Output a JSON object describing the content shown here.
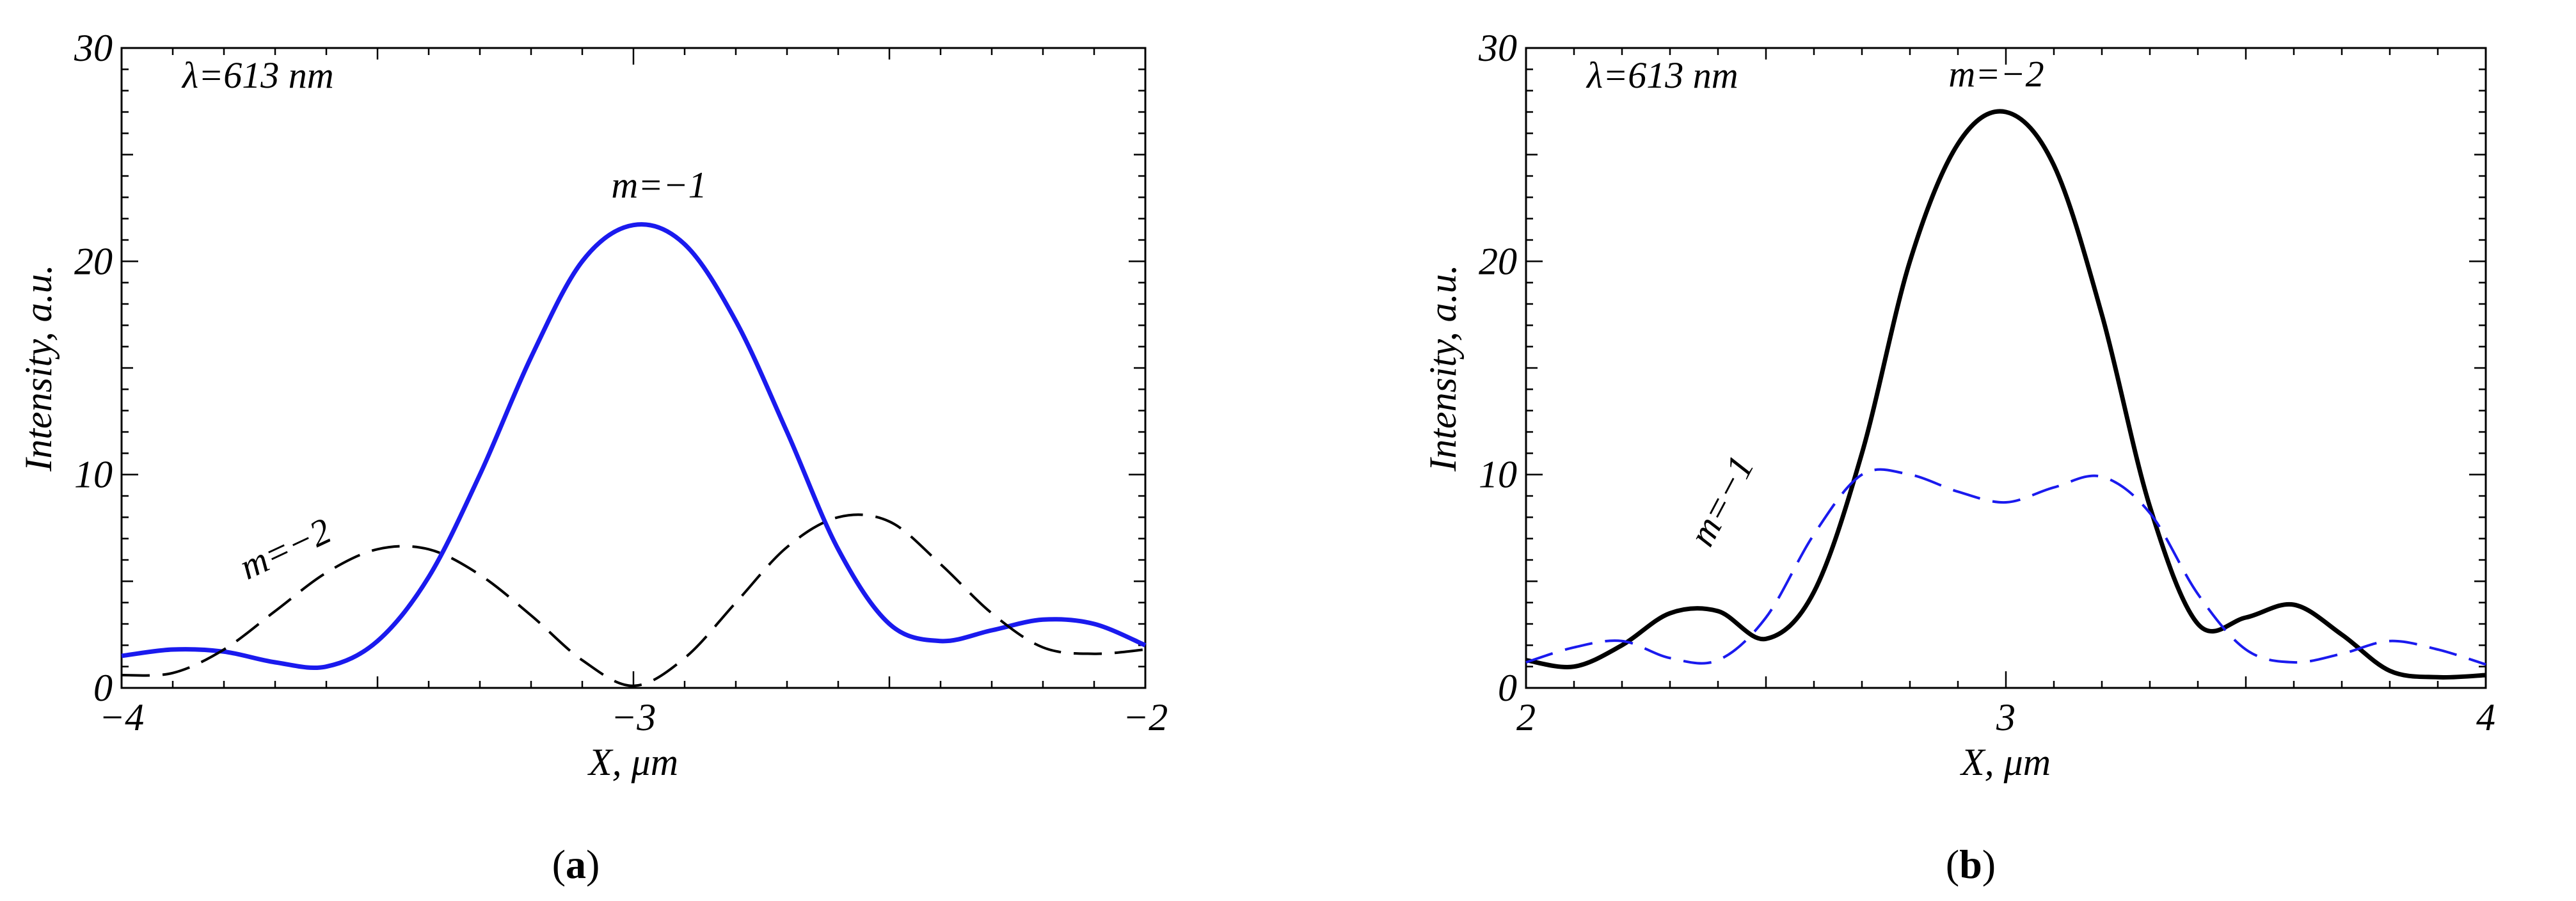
{
  "chart_data": [
    {
      "type": "line",
      "panel_label": "a",
      "annotation_text": "λ=613 nm",
      "xlabel": "X, μm",
      "ylabel": "Intensity, a.u.",
      "xlim": [
        -4,
        -2
      ],
      "ylim": [
        0,
        30
      ],
      "xticks": [
        -4,
        -3,
        -2
      ],
      "xtick_labels": [
        "−4",
        "−3",
        "−2"
      ],
      "yticks": [
        0,
        10,
        20,
        30
      ],
      "ytick_labels": [
        "0",
        "10",
        "20",
        "30"
      ],
      "series": [
        {
          "name": "m=−1",
          "label_text": "m=−1",
          "label_at": [
            -2.95,
            23.0
          ],
          "label_rotation": 0,
          "color": "#1a1aee",
          "dash": "solid",
          "x": [
            -4.0,
            -3.9,
            -3.8,
            -3.7,
            -3.6,
            -3.5,
            -3.4,
            -3.3,
            -3.2,
            -3.1,
            -3.0,
            -2.9,
            -2.8,
            -2.7,
            -2.6,
            -2.5,
            -2.4,
            -2.3,
            -2.2,
            -2.1,
            -2.0
          ],
          "y": [
            1.5,
            1.8,
            1.7,
            1.2,
            1.0,
            2.2,
            5.2,
            10.0,
            15.5,
            20.0,
            21.7,
            20.8,
            17.2,
            12.0,
            6.5,
            3.0,
            2.2,
            2.7,
            3.2,
            3.0,
            2.0
          ]
        },
        {
          "name": "m=−2",
          "label_text": "m=−2",
          "label_at": [
            -3.67,
            6.0
          ],
          "label_rotation": -25,
          "color": "#000000",
          "dash": "dashed",
          "x": [
            -4.0,
            -3.9,
            -3.8,
            -3.7,
            -3.6,
            -3.5,
            -3.4,
            -3.3,
            -3.2,
            -3.1,
            -3.0,
            -2.9,
            -2.8,
            -2.7,
            -2.6,
            -2.5,
            -2.4,
            -2.3,
            -2.2,
            -2.1,
            -2.0
          ],
          "y": [
            0.6,
            0.7,
            1.8,
            3.6,
            5.4,
            6.5,
            6.5,
            5.3,
            3.4,
            1.3,
            0.1,
            1.4,
            4.0,
            6.6,
            8.0,
            7.8,
            5.8,
            3.5,
            1.9,
            1.6,
            1.8
          ]
        }
      ]
    },
    {
      "type": "line",
      "panel_label": "b",
      "annotation_text": "λ=613 nm",
      "xlabel": "X, μm",
      "ylabel": "Intensity, a.u.",
      "xlim": [
        2,
        4
      ],
      "ylim": [
        0,
        30
      ],
      "xticks": [
        2,
        3,
        4
      ],
      "xtick_labels": [
        "2",
        "3",
        "4"
      ],
      "yticks": [
        0,
        10,
        20,
        30
      ],
      "ytick_labels": [
        "0",
        "10",
        "20",
        "30"
      ],
      "series": [
        {
          "name": "m=−2",
          "label_text": "m=−2",
          "label_at": [
            2.98,
            28.2
          ],
          "label_rotation": 0,
          "color": "#000000",
          "dash": "solid",
          "x": [
            2.0,
            2.1,
            2.2,
            2.3,
            2.4,
            2.5,
            2.6,
            2.7,
            2.8,
            2.9,
            3.0,
            3.1,
            3.2,
            3.3,
            3.4,
            3.5,
            3.6,
            3.7,
            3.8,
            3.9,
            4.0
          ],
          "y": [
            1.3,
            1.0,
            2.0,
            3.5,
            3.6,
            2.3,
            4.5,
            11.0,
            20.0,
            25.5,
            27.0,
            24.5,
            17.5,
            8.5,
            3.0,
            3.3,
            3.9,
            2.5,
            0.8,
            0.5,
            0.6
          ]
        },
        {
          "name": "m=−1",
          "label_text": "m=−1",
          "label_at": [
            2.43,
            8.5
          ],
          "label_rotation": -62,
          "color": "#1a1aee",
          "dash": "dashed",
          "x": [
            2.0,
            2.1,
            2.2,
            2.3,
            2.4,
            2.5,
            2.6,
            2.7,
            2.8,
            2.9,
            3.0,
            3.1,
            3.2,
            3.3,
            3.4,
            3.5,
            3.6,
            3.7,
            3.8,
            3.9,
            4.0
          ],
          "y": [
            1.2,
            1.9,
            2.2,
            1.4,
            1.3,
            3.3,
            7.2,
            10.0,
            10.0,
            9.2,
            8.7,
            9.4,
            9.9,
            8.2,
            4.4,
            1.8,
            1.2,
            1.6,
            2.2,
            1.8,
            1.1
          ]
        }
      ]
    }
  ]
}
